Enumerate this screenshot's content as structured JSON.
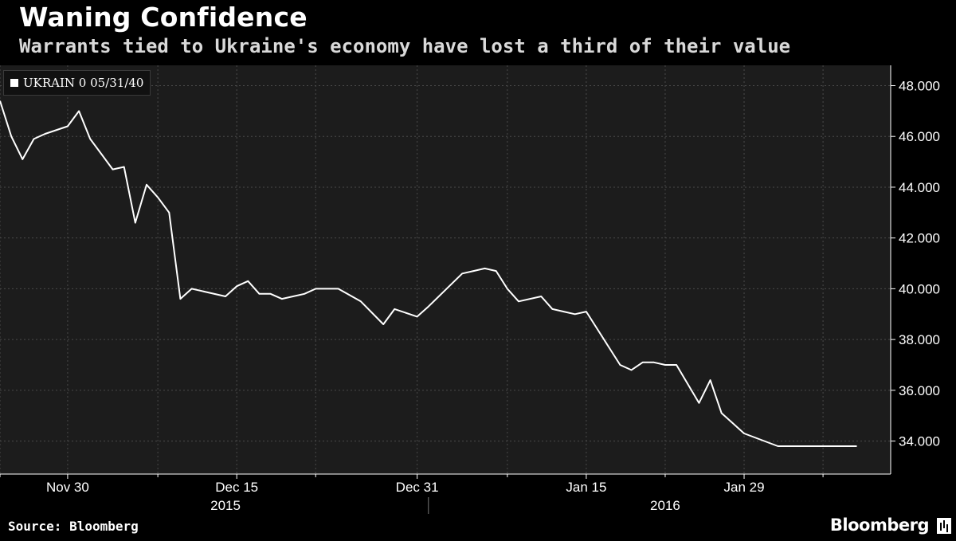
{
  "title": "Waning Confidence",
  "subtitle": "Warrants tied to Ukraine's economy have lost a third of their value",
  "source": "Source: Bloomberg",
  "brand": "Bloomberg",
  "colors": {
    "background": "#000000",
    "plot_background": "#1c1c1c",
    "grid": "#4a4a4a",
    "line": "#ffffff",
    "axis": "#ffffff"
  },
  "chart_data": {
    "type": "line",
    "title": "Waning Confidence",
    "subtitle": "Warrants tied to Ukraine's economy have lost a third of their value",
    "legend": "top-left",
    "grid": true,
    "xlim": [
      "2015-11-24",
      "2016-02-11"
    ],
    "ylim": [
      32.7,
      48.8
    ],
    "y_ticks": [
      34,
      36,
      38,
      40,
      42,
      44,
      46,
      48
    ],
    "y_tick_labels": [
      "34.000",
      "36.000",
      "38.000",
      "40.000",
      "42.000",
      "44.000",
      "46.000",
      "48.000"
    ],
    "x_ticks": [
      {
        "date": "2015-11-30",
        "label": "Nov 30"
      },
      {
        "date": "2015-12-15",
        "label": "Dec 15"
      },
      {
        "date": "2015-12-31",
        "label": "Dec 31"
      },
      {
        "date": "2016-01-15",
        "label": "Jan 15"
      },
      {
        "date": "2016-01-29",
        "label": "Jan 29"
      }
    ],
    "minor_grid_dates": [
      "2015-11-24",
      "2015-12-08",
      "2015-12-22",
      "2016-01-08",
      "2016-01-22",
      "2016-02-05"
    ],
    "years": [
      {
        "label": "2015",
        "center": "2015-12-14"
      },
      {
        "label": "2016",
        "center": "2016-01-22"
      }
    ],
    "year_divider": "2016-01-01",
    "series": [
      {
        "name": "UKRAIN 0 05/31/40",
        "x": [
          "2015-11-24",
          "2015-11-25",
          "2015-11-26",
          "2015-11-27",
          "2015-11-28",
          "2015-11-30",
          "2015-12-01",
          "2015-12-02",
          "2015-12-03",
          "2015-12-04",
          "2015-12-05",
          "2015-12-06",
          "2015-12-07",
          "2015-12-08",
          "2015-12-09",
          "2015-12-10",
          "2015-12-11",
          "2015-12-14",
          "2015-12-15",
          "2015-12-16",
          "2015-12-17",
          "2015-12-18",
          "2015-12-19",
          "2015-12-21",
          "2015-12-22",
          "2015-12-23",
          "2015-12-24",
          "2015-12-26",
          "2015-12-28",
          "2015-12-29",
          "2015-12-31",
          "2016-01-01",
          "2016-01-04",
          "2016-01-05",
          "2016-01-06",
          "2016-01-07",
          "2016-01-08",
          "2016-01-09",
          "2016-01-11",
          "2016-01-12",
          "2016-01-13",
          "2016-01-14",
          "2016-01-15",
          "2016-01-18",
          "2016-01-19",
          "2016-01-20",
          "2016-01-21",
          "2016-01-22",
          "2016-01-23",
          "2016-01-25",
          "2016-01-26",
          "2016-01-27",
          "2016-01-28",
          "2016-01-29",
          "2016-02-01",
          "2016-02-02",
          "2016-02-03",
          "2016-02-04",
          "2016-02-05",
          "2016-02-08"
        ],
        "y": [
          47.4,
          46.0,
          45.1,
          45.9,
          46.1,
          46.4,
          47.0,
          45.9,
          45.3,
          44.7,
          44.8,
          42.6,
          44.1,
          43.6,
          43.0,
          39.6,
          40.0,
          39.7,
          40.1,
          40.3,
          39.8,
          39.8,
          39.6,
          39.8,
          40.0,
          40.0,
          40.0,
          39.5,
          38.6,
          39.2,
          38.9,
          39.3,
          40.6,
          40.7,
          40.8,
          40.7,
          40.0,
          39.5,
          39.7,
          39.2,
          39.1,
          39.0,
          39.1,
          37.0,
          36.8,
          37.1,
          37.1,
          37.0,
          37.0,
          35.5,
          36.4,
          35.1,
          34.7,
          34.3,
          33.8,
          33.8,
          33.8,
          33.8,
          33.8,
          33.8
        ]
      }
    ]
  }
}
